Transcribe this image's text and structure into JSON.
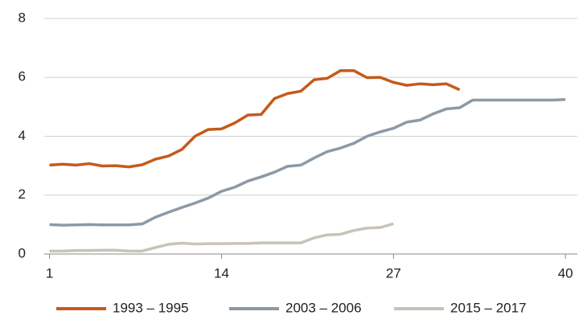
{
  "chart_data": {
    "type": "line",
    "x": [
      1,
      2,
      3,
      4,
      5,
      6,
      7,
      8,
      9,
      10,
      11,
      12,
      13,
      14,
      15,
      16,
      17,
      18,
      19,
      20,
      21,
      22,
      23,
      24,
      25,
      26,
      27,
      28,
      29,
      30,
      31,
      32,
      33,
      34,
      35,
      36,
      37,
      38,
      39,
      40
    ],
    "series": [
      {
        "name": "1993 – 1995",
        "color": "#c55a1b",
        "values": [
          3.02,
          3.05,
          3.02,
          3.07,
          2.99,
          3.0,
          2.96,
          3.03,
          3.22,
          3.33,
          3.55,
          4.0,
          4.23,
          4.25,
          4.45,
          4.72,
          4.74,
          5.28,
          5.45,
          5.53,
          5.92,
          5.97,
          6.23,
          6.23,
          5.99,
          6.0,
          5.83,
          5.73,
          5.78,
          5.75,
          5.78,
          5.58,
          null,
          null,
          null,
          null,
          null,
          null,
          null,
          null
        ]
      },
      {
        "name": "2003 – 2006",
        "color": "#8c99a6",
        "values": [
          1.0,
          0.98,
          0.99,
          1.0,
          0.99,
          0.99,
          0.99,
          1.02,
          1.25,
          1.42,
          1.58,
          1.73,
          1.9,
          2.13,
          2.27,
          2.48,
          2.62,
          2.78,
          2.98,
          3.02,
          3.26,
          3.48,
          3.6,
          3.76,
          4.0,
          4.15,
          4.27,
          4.48,
          4.55,
          4.76,
          4.93,
          4.97,
          5.23,
          5.23,
          5.23,
          5.23,
          5.23,
          5.23,
          5.23,
          5.25
        ]
      },
      {
        "name": "2015 – 2017",
        "color": "#c9c3b8",
        "values": [
          0.1,
          0.1,
          0.12,
          0.12,
          0.13,
          0.13,
          0.1,
          0.1,
          0.22,
          0.33,
          0.37,
          0.34,
          0.35,
          0.35,
          0.36,
          0.36,
          0.38,
          0.38,
          0.38,
          0.38,
          0.55,
          0.65,
          0.67,
          0.8,
          0.88,
          0.9,
          1.03,
          null,
          null,
          null,
          null,
          null,
          null,
          null,
          null,
          null,
          null,
          null,
          null,
          null
        ]
      }
    ],
    "xlim": [
      0.6,
      40.9
    ],
    "xticks": [
      1,
      14,
      27,
      40
    ],
    "ylim": [
      0,
      8
    ],
    "yticks": [
      0,
      2,
      4,
      6,
      8
    ],
    "grid": true
  }
}
